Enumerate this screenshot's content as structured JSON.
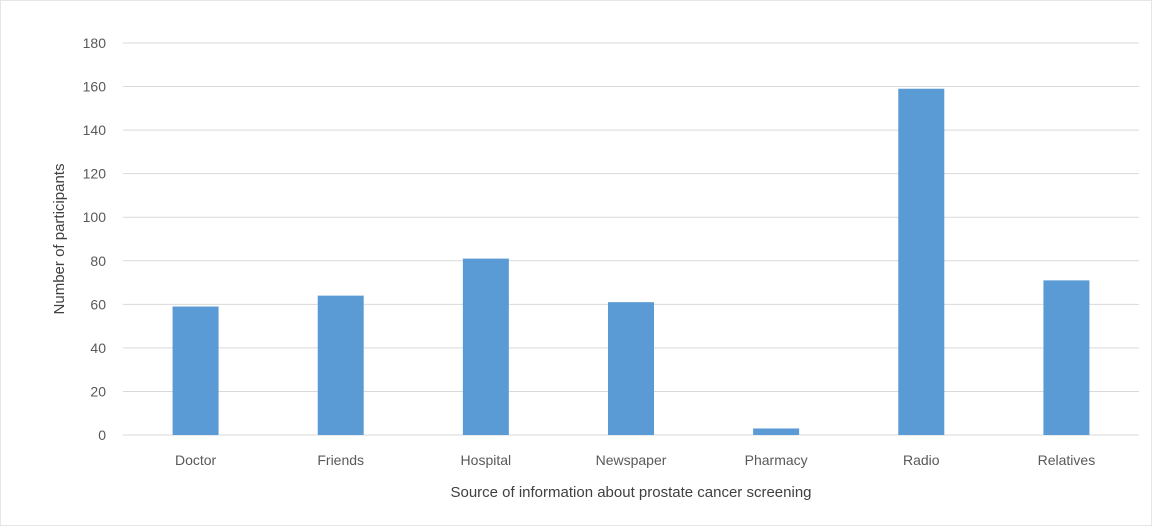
{
  "chart_data": {
    "type": "bar",
    "title": "",
    "xlabel": "Source of information about prostate cancer screening",
    "ylabel": "Number of participants",
    "categories": [
      "Doctor",
      "Friends",
      "Hospital",
      "Newspaper",
      "Pharmacy",
      "Radio",
      "Relatives"
    ],
    "series": [
      {
        "name": "",
        "values": [
          59,
          64,
          81,
          61,
          3,
          159,
          71
        ]
      }
    ],
    "ylim": [
      0,
      180
    ],
    "yticks": [
      0,
      20,
      40,
      60,
      80,
      100,
      120,
      140,
      160,
      180
    ],
    "grid": true,
    "legend": "none",
    "bar_color": "#5b9bd5",
    "grid_color": "#d9d9d9"
  }
}
